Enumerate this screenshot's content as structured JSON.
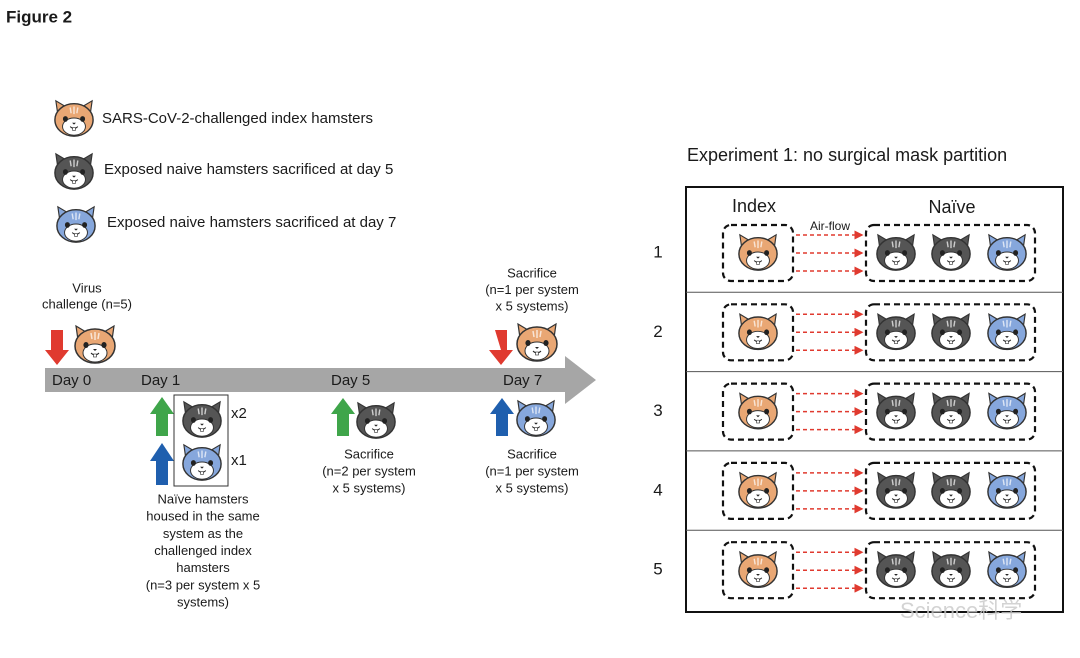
{
  "header": {
    "title": "Figure 2"
  },
  "legend": [
    {
      "label": "SARS-CoV-2-challenged index hamsters"
    },
    {
      "label": "Exposed naive hamsters sacrificed at day 5"
    },
    {
      "label": "Exposed naive hamsters sacrificed at day 7"
    }
  ],
  "timeline": {
    "days": [
      "Day 0",
      "Day 1",
      "Day 5",
      "Day 7"
    ],
    "day0_note": [
      "Virus",
      "challenge (n=5)"
    ],
    "day1_counts": [
      "x2",
      "x1"
    ],
    "day1_note": [
      "Naïve hamsters",
      "housed in the same",
      "system as the",
      "challenged index",
      "hamsters",
      "(n=3 per system x 5",
      "systems)"
    ],
    "day5_note": [
      "Sacrifice",
      "(n=2 per system",
      "x 5 systems)"
    ],
    "day7_top_note": [
      "Sacrifice",
      "(n=1 per system",
      "x 5 systems)"
    ],
    "day7_bottom_note": [
      "Sacrifice",
      "(n=1 per system",
      "x 5 systems)"
    ]
  },
  "experiment": {
    "title": "Experiment 1: no surgical mask partition",
    "index_label": "Index",
    "naive_label": "Naïve",
    "airflow_label": "Air-flow",
    "rows": [
      1,
      2,
      3,
      4,
      5
    ]
  },
  "watermark": "Science科学"
}
